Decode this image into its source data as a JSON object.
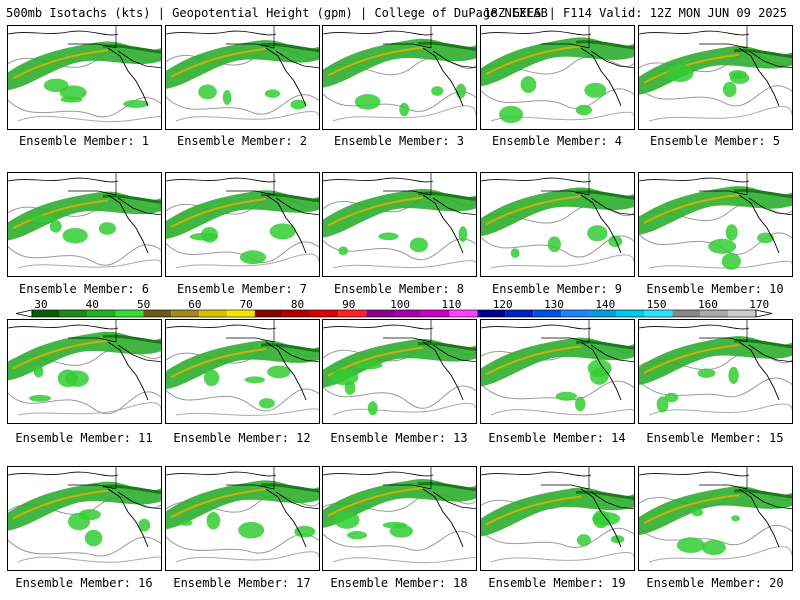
{
  "header": {
    "left": "500mb Isotachs (kts) | Geopotential Height (gpm) | College of DuPage NEXLAB",
    "right": "18Z GEFS | F114 Valid: 12Z MON JUN 09 2025"
  },
  "panels": [
    {
      "label": "Ensemble Member: 1"
    },
    {
      "label": "Ensemble Member: 2"
    },
    {
      "label": "Ensemble Member: 3"
    },
    {
      "label": "Ensemble Member: 4"
    },
    {
      "label": "Ensemble Member: 5"
    },
    {
      "label": "Ensemble Member: 6"
    },
    {
      "label": "Ensemble Member: 7"
    },
    {
      "label": "Ensemble Member: 8"
    },
    {
      "label": "Ensemble Member: 9"
    },
    {
      "label": "Ensemble Member: 10"
    },
    {
      "label": "Ensemble Member: 11"
    },
    {
      "label": "Ensemble Member: 12"
    },
    {
      "label": "Ensemble Member: 13"
    },
    {
      "label": "Ensemble Member: 14"
    },
    {
      "label": "Ensemble Member: 15"
    },
    {
      "label": "Ensemble Member: 16"
    },
    {
      "label": "Ensemble Member: 17"
    },
    {
      "label": "Ensemble Member: 18"
    },
    {
      "label": "Ensemble Member: 19"
    },
    {
      "label": "Ensemble Member: 20"
    }
  ],
  "colorbar": {
    "ticks": [
      "30",
      "40",
      "50",
      "60",
      "70",
      "80",
      "90",
      "100",
      "110",
      "120",
      "130",
      "140",
      "150",
      "160",
      "170"
    ],
    "colors": [
      "#0a5a0a",
      "#1a8a1a",
      "#22b022",
      "#33dd33",
      "#6b5a1a",
      "#a08a20",
      "#d4c000",
      "#f0e600",
      "#8b0000",
      "#b00000",
      "#d80000",
      "#ff2020",
      "#8a008a",
      "#a800a8",
      "#c800c8",
      "#ff40ff",
      "#000090",
      "#0020c0",
      "#0050e0",
      "#2080ff",
      "#00a0e0",
      "#00c8f0",
      "#30e0ff",
      "#888888",
      "#aaaaaa",
      "#cccccc"
    ]
  }
}
